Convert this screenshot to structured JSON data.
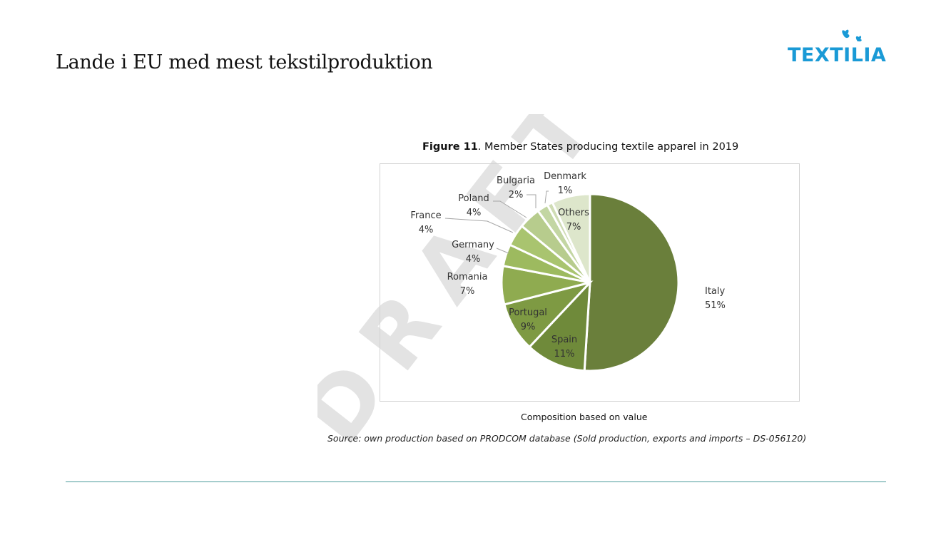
{
  "slide": {
    "title": "Lande i EU med mest tekstilproduktion",
    "logo_text": "TEXTILIA",
    "logo_icon": "butterflies-icon",
    "brand_color": "#1a9ad6"
  },
  "figure": {
    "caption_bold": "Figure 11",
    "caption_rest": ". Member States producing textile apparel in 2019",
    "composition_note": "Composition based on value",
    "source_note": "Source: own production based on PRODCOM database (Sold production, exports and imports – DS-056120)",
    "watermark": "DRAFT"
  },
  "chart_data": {
    "type": "pie",
    "title": "Member States producing textile apparel in 2019",
    "categories": [
      "Italy",
      "Spain",
      "Portugal",
      "Romania",
      "Germany",
      "France",
      "Poland",
      "Bulgaria",
      "Denmark",
      "Others"
    ],
    "values": [
      51,
      11,
      9,
      7,
      4,
      4,
      4,
      2,
      1,
      7
    ],
    "value_labels": [
      "51%",
      "11%",
      "9%",
      "7%",
      "4%",
      "4%",
      "4%",
      "2%",
      "1%",
      "7%"
    ],
    "colors": [
      "#6a7f3b",
      "#6f8a3a",
      "#7e9a43",
      "#8fab50",
      "#9dba5f",
      "#a9c46f",
      "#b7cc8d",
      "#c3d6a3",
      "#cfdcb4",
      "#dde6cb"
    ],
    "legend": "none",
    "labels_outside": [
      "France",
      "Poland",
      "Bulgaria",
      "Denmark",
      "Germany",
      "Romania"
    ]
  }
}
